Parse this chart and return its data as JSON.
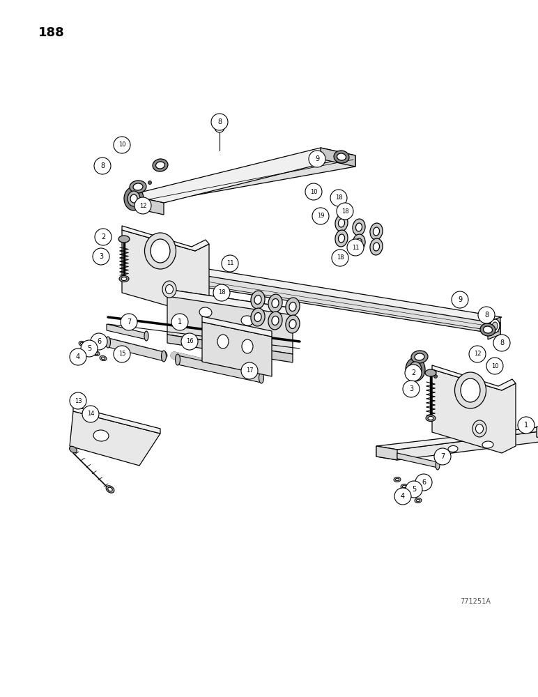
{
  "page_number": "188",
  "figure_code": "771251A",
  "background_color": "#ffffff",
  "line_color": "#000000",
  "fig_width": 7.72,
  "fig_height": 10.0,
  "dpi": 100
}
